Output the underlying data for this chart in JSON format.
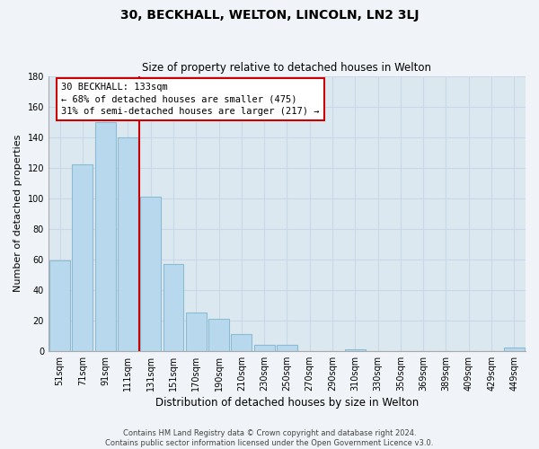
{
  "title": "30, BECKHALL, WELTON, LINCOLN, LN2 3LJ",
  "subtitle": "Size of property relative to detached houses in Welton",
  "xlabel": "Distribution of detached houses by size in Welton",
  "ylabel": "Number of detached properties",
  "bar_labels": [
    "51sqm",
    "71sqm",
    "91sqm",
    "111sqm",
    "131sqm",
    "151sqm",
    "170sqm",
    "190sqm",
    "210sqm",
    "230sqm",
    "250sqm",
    "270sqm",
    "290sqm",
    "310sqm",
    "330sqm",
    "350sqm",
    "369sqm",
    "389sqm",
    "409sqm",
    "429sqm",
    "449sqm"
  ],
  "bar_values": [
    59,
    122,
    150,
    140,
    101,
    57,
    25,
    21,
    11,
    4,
    4,
    0,
    0,
    1,
    0,
    0,
    0,
    0,
    0,
    0,
    2
  ],
  "bar_color": "#b8d8ed",
  "bar_edge_color": "#8bbcd4",
  "vline_color": "#cc0000",
  "annotation_title": "30 BECKHALL: 133sqm",
  "annotation_line1": "← 68% of detached houses are smaller (475)",
  "annotation_line2": "31% of semi-detached houses are larger (217) →",
  "annotation_box_color": "#ffffff",
  "annotation_box_edge": "#cc0000",
  "ylim": [
    0,
    180
  ],
  "yticks": [
    0,
    20,
    40,
    60,
    80,
    100,
    120,
    140,
    160,
    180
  ],
  "footer_line1": "Contains HM Land Registry data © Crown copyright and database right 2024.",
  "footer_line2": "Contains public sector information licensed under the Open Government Licence v3.0.",
  "bg_color": "#f0f4f8",
  "plot_bg_color": "#e8f0f8",
  "grid_color": "#c8d8e8"
}
